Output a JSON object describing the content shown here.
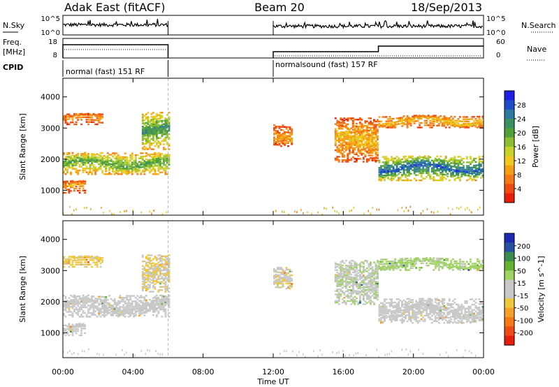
{
  "header": {
    "station": "Adak East (fitACF)",
    "beam": "Beam 20",
    "date": "18/Sep/2013"
  },
  "status_panels": {
    "left_labels": [
      "N.Sky",
      "Freq.",
      "[MHz]",
      "CPID"
    ],
    "right_labels": [
      "N.Search",
      "Nave"
    ],
    "noise_left_ticks": [
      "10^5",
      "10^0"
    ],
    "noise_right_ticks": [
      "10^5",
      "10^0"
    ],
    "freq_left_ticks": [
      "18",
      "8"
    ],
    "nave_right_ticks": [
      "60",
      "0"
    ],
    "cpid_segments": [
      "normal (fast) 151 RF",
      "normalsound (fast) 157 RF"
    ]
  },
  "colorbars": {
    "power": {
      "label": "Power [dB]",
      "ticks": [
        "28",
        "24",
        "20",
        "16",
        "12",
        "8",
        "4"
      ],
      "colors": [
        "#1e1ee6",
        "#1e4bc8",
        "#2d78a0",
        "#3c9164",
        "#50a03c",
        "#8cbe32",
        "#c8d228",
        "#f0c81e",
        "#f5a014",
        "#f57814",
        "#f04b0f",
        "#e61e0a"
      ]
    },
    "velocity": {
      "label": "Velocity [m s^-1]",
      "ticks": [
        "200",
        "100",
        "50",
        "15",
        "-15",
        "-50",
        "-100",
        "-200"
      ],
      "colors": [
        "#1e28b4",
        "#2850a0",
        "#3c8c50",
        "#64b432",
        "#a0d264",
        "#c8c8c8",
        "#c8c8c8",
        "#f0c83c",
        "#f5a028",
        "#f57814",
        "#f04b14",
        "#e61e0a"
      ]
    }
  },
  "axes": {
    "x_ticks": [
      "00:00",
      "04:00",
      "08:00",
      "12:00",
      "16:00",
      "20:00",
      "00:00"
    ],
    "x_label": "Time UT",
    "y_ticks": [
      "4000",
      "3000",
      "2000",
      "1000"
    ],
    "y_label": "Slant Range [km]"
  },
  "chart_data": [
    {
      "type": "heatmap",
      "title": "Power",
      "xlabel": "Time UT",
      "ylabel": "Slant Range [km]",
      "xlim": [
        0,
        24
      ],
      "ylim": [
        200,
        4600
      ],
      "colorbar": "Power [dB]",
      "colorbar_range": [
        0,
        32
      ],
      "data_gaps_hours": [
        [
          6.0,
          12.0
        ]
      ],
      "echo_bands": [
        {
          "t_start": 0.0,
          "t_end": 2.3,
          "range_low": 3100,
          "range_high": 3450,
          "power": 8
        },
        {
          "t_start": 0.0,
          "t_end": 6.0,
          "range_low": 1500,
          "range_high": 2200,
          "power": 18
        },
        {
          "t_start": 4.5,
          "t_end": 6.0,
          "range_low": 2300,
          "range_high": 3500,
          "power": 20
        },
        {
          "t_start": 0.0,
          "t_end": 1.3,
          "range_low": 900,
          "range_high": 1300,
          "power": 8
        },
        {
          "t_start": 12.0,
          "t_end": 13.0,
          "range_low": 2400,
          "range_high": 3100,
          "power": 8
        },
        {
          "t_start": 15.5,
          "t_end": 18.0,
          "range_low": 1900,
          "range_high": 3300,
          "power": 10
        },
        {
          "t_start": 18.0,
          "t_end": 24.0,
          "range_low": 1300,
          "range_high": 2100,
          "power": 24
        },
        {
          "t_start": 18.0,
          "t_end": 24.0,
          "range_low": 3000,
          "range_high": 3400,
          "power": 10
        }
      ]
    },
    {
      "type": "heatmap",
      "title": "Velocity",
      "xlabel": "Time UT",
      "ylabel": "Slant Range [km]",
      "xlim": [
        0,
        24
      ],
      "ylim": [
        200,
        4600
      ],
      "colorbar": "Velocity [m s^-1]",
      "colorbar_range": [
        -250,
        250
      ],
      "data_gaps_hours": [
        [
          6.0,
          12.0
        ]
      ],
      "echo_bands": [
        {
          "t_start": 0.0,
          "t_end": 2.3,
          "range_low": 3100,
          "range_high": 3450,
          "velocity": -60
        },
        {
          "t_start": 0.0,
          "t_end": 6.0,
          "range_low": 1500,
          "range_high": 2200,
          "velocity": 0
        },
        {
          "t_start": 4.5,
          "t_end": 6.0,
          "range_low": 2300,
          "range_high": 3500,
          "velocity": -40
        },
        {
          "t_start": 0.0,
          "t_end": 1.3,
          "range_low": 900,
          "range_high": 1300,
          "velocity": 0
        },
        {
          "t_start": 12.0,
          "t_end": 13.0,
          "range_low": 2400,
          "range_high": 3100,
          "velocity": -30
        },
        {
          "t_start": 15.5,
          "t_end": 18.0,
          "range_low": 1900,
          "range_high": 3300,
          "velocity": 30
        },
        {
          "t_start": 18.0,
          "t_end": 24.0,
          "range_low": 1300,
          "range_high": 2100,
          "velocity": 0
        },
        {
          "t_start": 18.0,
          "t_end": 24.0,
          "range_low": 3000,
          "range_high": 3400,
          "velocity": 60
        }
      ]
    }
  ]
}
